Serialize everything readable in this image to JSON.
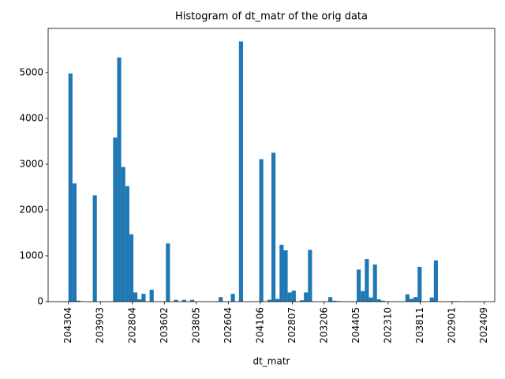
{
  "chart_data": {
    "type": "histogram",
    "title": "Histogram of dt_matr of the orig data",
    "x_label": "dt_matr",
    "color": "#1f77b4",
    "bins": [
      0,
      1.27,
      2.54,
      3.81,
      5.08,
      6.35,
      7.62,
      8.89,
      10.16,
      11.43,
      12.7,
      13.97,
      15.24,
      16.51,
      17.78,
      19.05,
      20.32,
      21.59,
      22.86,
      24.13,
      25.4,
      26.67,
      27.94,
      29.21,
      30.48,
      31.75,
      33.02,
      34.29,
      35.56,
      36.83,
      38.1,
      39.37,
      40.64,
      41.91,
      43.18,
      44.45,
      45.72,
      46.99,
      48.26,
      49.53,
      50.8,
      52.07,
      53.34,
      54.61,
      55.88,
      57.15,
      58.42,
      59.69,
      60.96,
      62.23,
      63.5,
      64.77,
      66.04,
      67.31,
      68.58,
      69.85,
      71.12,
      72.39,
      73.66,
      74.93,
      76.2,
      77.47,
      78.74,
      80.01,
      81.28,
      82.55,
      83.82,
      85.09,
      86.36,
      87.63,
      88.9,
      90.17,
      91.44,
      92.71,
      93.98,
      95.25,
      96.52,
      97.79,
      99.06,
      100.33,
      101.6,
      102.87,
      104.14,
      105.41,
      106.68,
      107.95,
      109.22,
      110.49,
      111.76,
      113.03,
      114.3,
      115.57,
      116.84,
      118.11,
      119.38,
      120.65,
      121.92,
      123.19,
      124.46,
      125.73,
      127
    ],
    "values": [
      4980,
      2580,
      20,
      0,
      0,
      0,
      2320,
      0,
      0,
      0,
      0,
      3580,
      5330,
      2940,
      2520,
      1470,
      200,
      50,
      170,
      0,
      260,
      0,
      0,
      0,
      1270,
      0,
      40,
      0,
      40,
      0,
      40,
      0,
      0,
      0,
      0,
      0,
      0,
      100,
      0,
      0,
      170,
      0,
      5680,
      0,
      0,
      0,
      0,
      3110,
      0,
      40,
      3250,
      60,
      1240,
      1120,
      200,
      240,
      0,
      30,
      200,
      1130,
      0,
      0,
      0,
      0,
      100,
      20,
      10,
      0,
      0,
      0,
      0,
      700,
      230,
      930,
      90,
      810,
      50,
      20,
      0,
      0,
      0,
      0,
      0,
      160,
      60,
      100,
      760,
      0,
      0,
      90,
      900,
      0,
      0,
      0,
      10,
      10,
      0,
      0,
      0,
      0
    ],
    "xlim": [
      -6.35,
      133.35
    ],
    "xticks": [
      {
        "value": 0,
        "label": "204304"
      },
      {
        "value": 10,
        "label": "203903"
      },
      {
        "value": 20,
        "label": "202804"
      },
      {
        "value": 30,
        "label": "203602"
      },
      {
        "value": 40,
        "label": "203805"
      },
      {
        "value": 50,
        "label": "202604"
      },
      {
        "value": 60,
        "label": "204106"
      },
      {
        "value": 70,
        "label": "202807"
      },
      {
        "value": 80,
        "label": "203206"
      },
      {
        "value": 90,
        "label": "204405"
      },
      {
        "value": 100,
        "label": "202310"
      },
      {
        "value": 110,
        "label": "203811"
      },
      {
        "value": 120,
        "label": "202901"
      },
      {
        "value": 130,
        "label": "202409"
      }
    ],
    "ylim": [
      0,
      5964
    ],
    "yticks": [
      0,
      1000,
      2000,
      3000,
      4000,
      5000
    ]
  }
}
